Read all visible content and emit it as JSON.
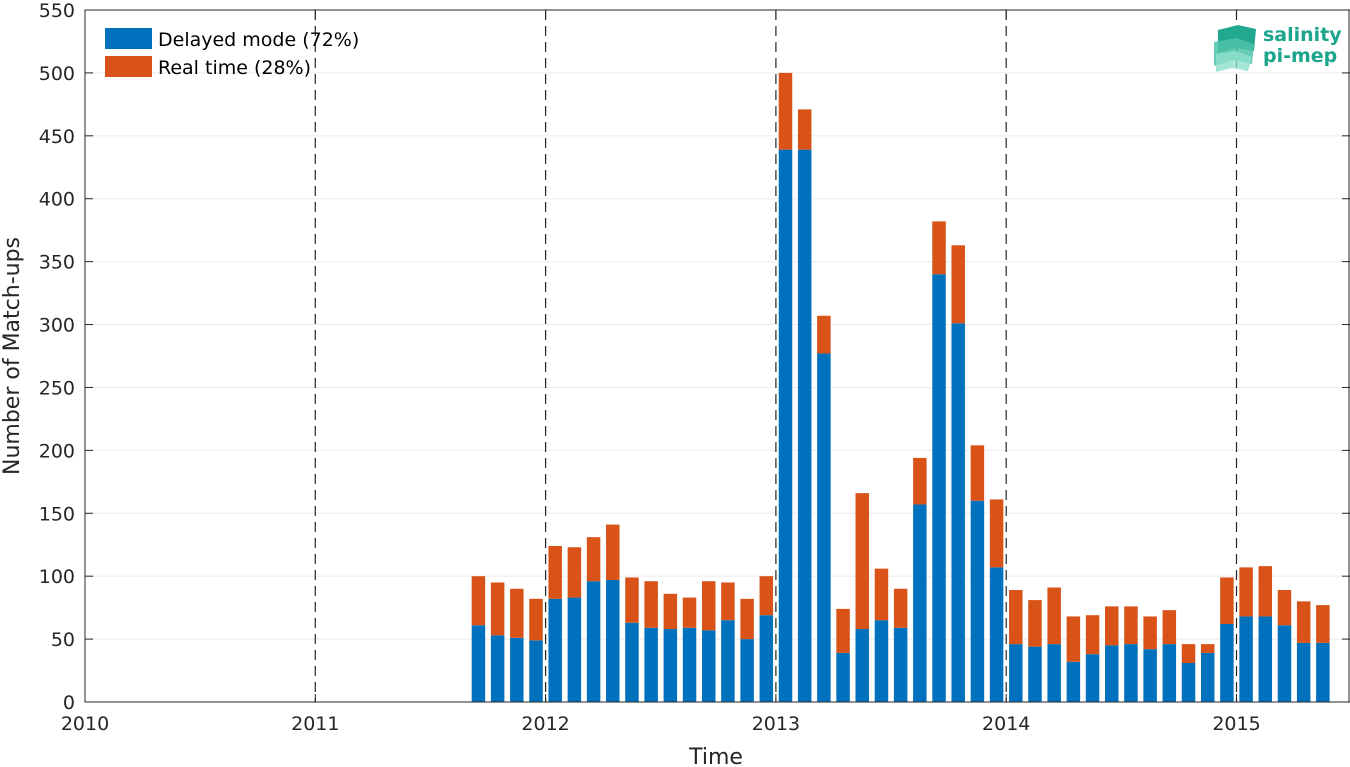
{
  "chart_data": {
    "type": "bar",
    "stacked": true,
    "xlabel": "Time",
    "ylabel": "Number of Match-ups",
    "ylim": [
      0,
      550
    ],
    "yticks": [
      0,
      50,
      100,
      150,
      200,
      250,
      300,
      350,
      400,
      450,
      500,
      550
    ],
    "xlim": [
      "2010-01",
      "2015-07"
    ],
    "xticks": [
      "2010",
      "2011",
      "2012",
      "2013",
      "2014",
      "2015"
    ],
    "year_separators": [
      "2011",
      "2012",
      "2013",
      "2014",
      "2015"
    ],
    "grid": true,
    "legend_position": "top-left",
    "months": [
      "2011-09",
      "2011-10",
      "2011-11",
      "2011-12",
      "2012-01",
      "2012-02",
      "2012-03",
      "2012-04",
      "2012-05",
      "2012-06",
      "2012-07",
      "2012-08",
      "2012-09",
      "2012-10",
      "2012-11",
      "2012-12",
      "2013-01",
      "2013-02",
      "2013-03",
      "2013-04",
      "2013-05",
      "2013-06",
      "2013-07",
      "2013-08",
      "2013-09",
      "2013-10",
      "2013-11",
      "2013-12",
      "2014-01",
      "2014-02",
      "2014-03",
      "2014-04",
      "2014-05",
      "2014-06",
      "2014-07",
      "2014-08",
      "2014-09",
      "2014-10",
      "2014-11",
      "2014-12",
      "2015-01",
      "2015-02",
      "2015-03",
      "2015-04",
      "2015-05",
      "2015-06"
    ],
    "series": [
      {
        "name": "Delayed mode (72%)",
        "color": "#0072bd",
        "values": [
          61,
          53,
          51,
          49,
          82,
          83,
          96,
          97,
          63,
          59,
          58,
          59,
          57,
          65,
          50,
          69,
          439,
          439,
          277,
          39,
          58,
          65,
          59,
          157,
          340,
          301,
          160,
          107,
          46,
          44,
          46,
          32,
          38,
          45,
          46,
          42,
          46,
          31,
          39,
          62,
          68,
          68,
          61,
          47,
          47,
          0
        ]
      },
      {
        "name": "Real time (28%)",
        "color": "#d95319",
        "values": [
          39,
          42,
          39,
          33,
          42,
          40,
          35,
          44,
          36,
          37,
          28,
          24,
          39,
          30,
          32,
          31,
          61,
          32,
          30,
          35,
          108,
          41,
          31,
          37,
          42,
          62,
          44,
          54,
          43,
          37,
          45,
          36,
          31,
          31,
          30,
          26,
          27,
          15,
          7,
          37,
          39,
          40,
          28,
          33,
          30,
          0
        ]
      }
    ]
  },
  "logo": {
    "line1": "salinity",
    "line2": "pi-mep",
    "color": "#1aa58c"
  }
}
